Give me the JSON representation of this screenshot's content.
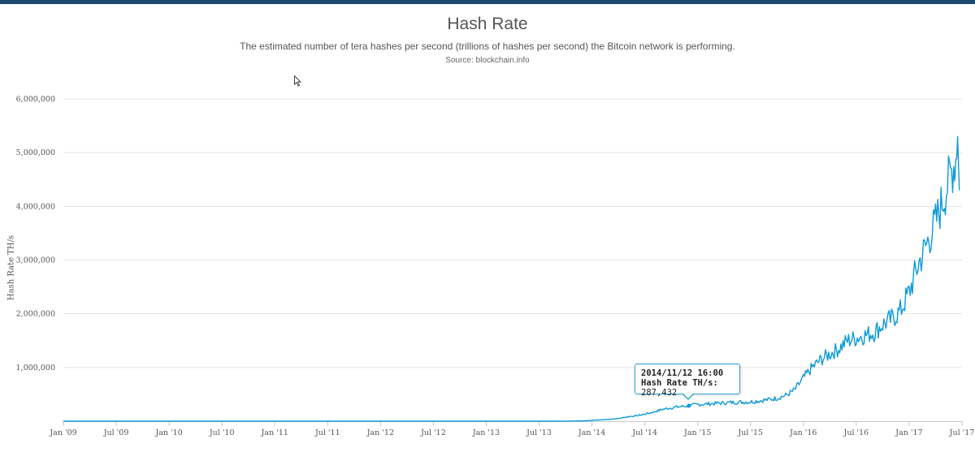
{
  "header": {
    "title": "Hash Rate",
    "subtitle": "The estimated number of tera hashes per second (trillions of hashes per second) the Bitcoin network is performing.",
    "source": "Source: blockchain.info"
  },
  "tooltip": {
    "time": "2014/11/12 16:00",
    "series_label": "Hash Rate TH/s:",
    "value": "287,432"
  },
  "colors": {
    "line": "#0f9ad6",
    "grid": "#e3e3e3",
    "top_bar": "#1c4a6e"
  },
  "chart_data": {
    "type": "line",
    "title": "Hash Rate",
    "xlabel": "",
    "ylabel": "Hash Rate TH/s",
    "ylim": [
      0,
      6000000
    ],
    "xlim_months": [
      0,
      102
    ],
    "x_unit": "months since Jan 2009",
    "grid": true,
    "y_ticks": [
      {
        "value": 1000000,
        "label": "1,000,000"
      },
      {
        "value": 2000000,
        "label": "2,000,000"
      },
      {
        "value": 3000000,
        "label": "3,000,000"
      },
      {
        "value": 4000000,
        "label": "4,000,000"
      },
      {
        "value": 5000000,
        "label": "5,000,000"
      },
      {
        "value": 6000000,
        "label": "6,000,000"
      }
    ],
    "x_ticks": [
      {
        "month": 0,
        "label": "Jan '09"
      },
      {
        "month": 6,
        "label": "Jul '09"
      },
      {
        "month": 12,
        "label": "Jan '10"
      },
      {
        "month": 18,
        "label": "Jul '10"
      },
      {
        "month": 24,
        "label": "Jan '11"
      },
      {
        "month": 30,
        "label": "Jul '11"
      },
      {
        "month": 36,
        "label": "Jan '12"
      },
      {
        "month": 42,
        "label": "Jul '12"
      },
      {
        "month": 48,
        "label": "Jan '13"
      },
      {
        "month": 54,
        "label": "Jul '13"
      },
      {
        "month": 60,
        "label": "Jan '14"
      },
      {
        "month": 66,
        "label": "Jul '14"
      },
      {
        "month": 72,
        "label": "Jan '15"
      },
      {
        "month": 78,
        "label": "Jul '15"
      },
      {
        "month": 84,
        "label": "Jan '16"
      },
      {
        "month": 90,
        "label": "Jul '16"
      },
      {
        "month": 96,
        "label": "Jan '17"
      },
      {
        "month": 102,
        "label": "Jul '17"
      }
    ],
    "series": [
      {
        "name": "Hash Rate TH/s",
        "points": [
          [
            0,
            0
          ],
          [
            12,
            0
          ],
          [
            24,
            5
          ],
          [
            36,
            15
          ],
          [
            48,
            25
          ],
          [
            54,
            300
          ],
          [
            57,
            1000
          ],
          [
            59,
            5000
          ],
          [
            60,
            15000
          ],
          [
            61,
            25000
          ],
          [
            62,
            35000
          ],
          [
            63,
            50000
          ],
          [
            64,
            80000
          ],
          [
            65,
            100000
          ],
          [
            66,
            130000
          ],
          [
            67,
            170000
          ],
          [
            68,
            220000
          ],
          [
            69,
            250000
          ],
          [
            70,
            270000
          ],
          [
            71,
            287432
          ],
          [
            72,
            310000
          ],
          [
            73,
            320000
          ],
          [
            74,
            330000
          ],
          [
            75,
            340000
          ],
          [
            76,
            350000
          ],
          [
            77,
            355000
          ],
          [
            78,
            360000
          ],
          [
            79,
            380000
          ],
          [
            80,
            400000
          ],
          [
            81,
            430000
          ],
          [
            82,
            480000
          ],
          [
            83,
            580000
          ],
          [
            84,
            800000
          ],
          [
            85,
            1000000
          ],
          [
            86,
            1150000
          ],
          [
            87,
            1250000
          ],
          [
            88,
            1350000
          ],
          [
            89,
            1500000
          ],
          [
            90,
            1550000
          ],
          [
            91,
            1600000
          ],
          [
            92,
            1650000
          ],
          [
            93,
            1800000
          ],
          [
            94,
            1900000
          ],
          [
            95,
            2050000
          ],
          [
            96,
            2400000
          ],
          [
            97,
            2900000
          ],
          [
            98,
            3300000
          ],
          [
            99,
            3700000
          ],
          [
            100,
            4200000
          ],
          [
            100.7,
            4600000
          ],
          [
            101.3,
            4900000
          ],
          [
            101.5,
            5300000
          ]
        ]
      }
    ],
    "highlight": {
      "month": 71,
      "value": 287432
    }
  }
}
